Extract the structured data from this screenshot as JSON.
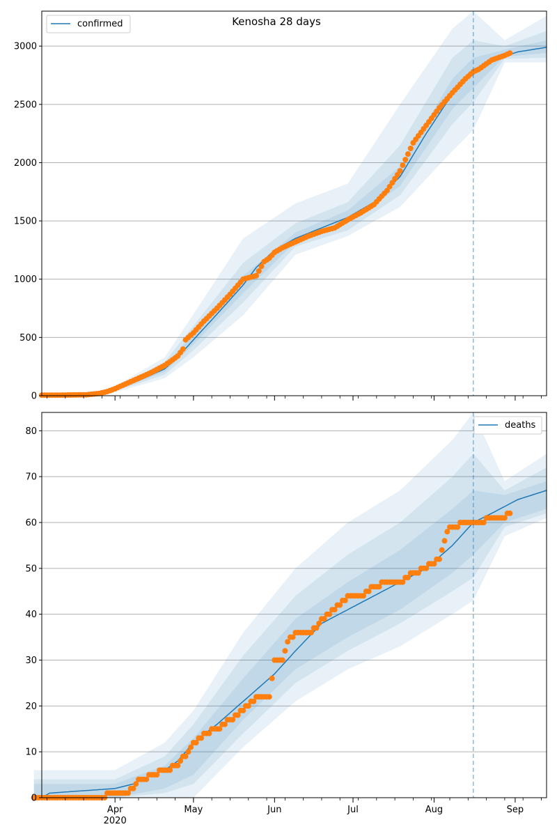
{
  "figure": {
    "title": "Kenosha 28 days"
  },
  "colors": {
    "model_line": "#1f77b4",
    "observed_points": "#ff7f0e",
    "band": "#1f77b4",
    "grid": "#b0b0b0"
  },
  "x_axis": {
    "month_ticks": [
      {
        "label": "Apr",
        "day": 31
      },
      {
        "label": "May",
        "day": 61
      },
      {
        "label": "Jun",
        "day": 92
      },
      {
        "label": "Jul",
        "day": 122
      },
      {
        "label": "Aug",
        "day": 153
      },
      {
        "label": "Sep",
        "day": 184
      }
    ],
    "year_label": "2020",
    "year_label_day": 31,
    "range_days": [
      3,
      196
    ],
    "note": "day 0 = 2020-03-01"
  },
  "chart_data": [
    {
      "type": "line",
      "panel": "top",
      "legend": {
        "label": "confirmed",
        "placement": "top-left"
      },
      "ylim": [
        0,
        3300
      ],
      "yticks": [
        0,
        500,
        1000,
        1500,
        2000,
        2500,
        3000
      ],
      "forecast_start_day": 168,
      "series": [
        {
          "name": "confirmed (model)",
          "x": [
            3,
            10,
            20,
            25,
            31,
            40,
            50,
            55,
            61,
            70,
            80,
            85,
            92,
            100,
            110,
            120,
            130,
            140,
            150,
            160,
            168,
            175,
            185,
            196
          ],
          "values": [
            0,
            2,
            5,
            20,
            50,
            130,
            230,
            330,
            480,
            700,
            950,
            1100,
            1250,
            1350,
            1440,
            1530,
            1660,
            1880,
            2250,
            2590,
            2780,
            2880,
            2950,
            2990
          ]
        },
        {
          "name": "confirmed (observed)",
          "x": [
            3,
            10,
            20,
            25,
            28,
            31,
            35,
            40,
            45,
            50,
            55,
            57,
            58,
            61,
            65,
            70,
            75,
            80,
            85,
            88,
            90,
            92,
            95,
            100,
            105,
            110,
            115,
            120,
            125,
            130,
            135,
            140,
            145,
            150,
            155,
            160,
            165,
            168,
            170,
            175,
            180,
            182
          ],
          "values": [
            5,
            5,
            8,
            20,
            35,
            60,
            100,
            150,
            200,
            260,
            340,
            400,
            480,
            540,
            640,
            750,
            870,
            1000,
            1030,
            1150,
            1180,
            1230,
            1270,
            1320,
            1370,
            1410,
            1440,
            1510,
            1570,
            1640,
            1760,
            1930,
            2170,
            2320,
            2470,
            2600,
            2720,
            2780,
            2800,
            2880,
            2920,
            2940
          ]
        }
      ],
      "bands": [
        {
          "name": "outer",
          "x": [
            31,
            50,
            61,
            80,
            100,
            120,
            140,
            160,
            168,
            180,
            196
          ],
          "lower": [
            30,
            150,
            330,
            690,
            1210,
            1370,
            1620,
            2100,
            2280,
            2860,
            2860
          ],
          "upper": [
            80,
            330,
            700,
            1350,
            1650,
            1820,
            2500,
            3150,
            3300,
            3050,
            3260
          ]
        },
        {
          "name": "middle",
          "x": [
            31,
            50,
            61,
            80,
            100,
            120,
            140,
            160,
            168,
            180,
            196
          ],
          "lower": [
            40,
            180,
            390,
            800,
            1280,
            1420,
            1720,
            2330,
            2520,
            2890,
            2900
          ],
          "upper": [
            65,
            290,
            600,
            1140,
            1480,
            1660,
            2150,
            2900,
            3050,
            3000,
            3130
          ]
        },
        {
          "name": "inner",
          "x": [
            31,
            50,
            61,
            80,
            100,
            120,
            140,
            160,
            168,
            180,
            196
          ],
          "lower": [
            45,
            205,
            440,
            880,
            1320,
            1480,
            1800,
            2460,
            2640,
            2910,
            2940
          ],
          "upper": [
            58,
            260,
            530,
            1030,
            1400,
            1590,
            1970,
            2720,
            2900,
            2970,
            3050
          ]
        }
      ]
    },
    {
      "type": "line",
      "panel": "bottom",
      "legend": {
        "label": "deaths",
        "placement": "top-right"
      },
      "ylim": [
        0,
        84
      ],
      "yticks": [
        0,
        10,
        20,
        30,
        40,
        50,
        60,
        70,
        80
      ],
      "forecast_start_day": 168,
      "series": [
        {
          "name": "deaths (model)",
          "x": [
            0,
            3,
            6,
            31,
            38,
            45,
            50,
            55,
            61,
            70,
            80,
            92,
            100,
            110,
            120,
            130,
            140,
            150,
            160,
            168,
            175,
            185,
            196
          ],
          "values": [
            0,
            0,
            1,
            2,
            3,
            5,
            6,
            8,
            12,
            16,
            21,
            27,
            32,
            38,
            41,
            44,
            47,
            50,
            55,
            60,
            62,
            65,
            67
          ]
        },
        {
          "name": "deaths (observed)",
          "x": [
            0,
            25,
            31,
            35,
            38,
            40,
            42,
            45,
            50,
            55,
            60,
            63,
            66,
            70,
            75,
            80,
            85,
            90,
            92,
            95,
            97,
            100,
            105,
            108,
            110,
            115,
            120,
            125,
            130,
            135,
            140,
            145,
            150,
            152,
            155,
            158,
            160,
            165,
            170,
            175,
            180,
            182
          ],
          "values": [
            0,
            0,
            1,
            1,
            2,
            4,
            4,
            5,
            6,
            7,
            11,
            13,
            14,
            15,
            17,
            19,
            22,
            22,
            30,
            30,
            34,
            36,
            36,
            37,
            39,
            41,
            44,
            44,
            46,
            47,
            47,
            49,
            50,
            51,
            52,
            58,
            59,
            60,
            60,
            61,
            61,
            62
          ]
        }
      ],
      "bands": [
        {
          "name": "outer",
          "x": [
            0,
            31,
            50,
            61,
            80,
            100,
            120,
            140,
            160,
            168,
            180,
            196
          ],
          "lower": [
            0,
            0,
            0,
            0,
            11,
            21,
            28,
            33,
            40,
            43,
            57,
            61
          ],
          "upper": [
            6,
            6,
            12,
            19,
            36,
            50,
            60,
            67,
            78,
            84,
            69,
            75
          ]
        },
        {
          "name": "middle",
          "x": [
            0,
            31,
            50,
            61,
            80,
            100,
            120,
            140,
            160,
            168,
            180,
            196
          ],
          "lower": [
            0,
            0,
            1,
            3,
            14,
            25,
            32,
            38,
            45,
            48,
            59,
            62
          ],
          "upper": [
            4,
            4,
            9,
            16,
            31,
            44,
            53,
            60,
            70,
            75,
            67,
            72
          ]
        },
        {
          "name": "inner",
          "x": [
            0,
            31,
            50,
            61,
            80,
            100,
            120,
            140,
            160,
            168,
            180,
            196
          ],
          "lower": [
            0,
            0,
            2,
            5,
            17,
            28,
            35,
            41,
            49,
            53,
            60,
            63
          ],
          "upper": [
            3,
            3,
            7,
            13,
            26,
            39,
            47,
            54,
            63,
            67,
            66,
            69
          ]
        }
      ]
    }
  ]
}
